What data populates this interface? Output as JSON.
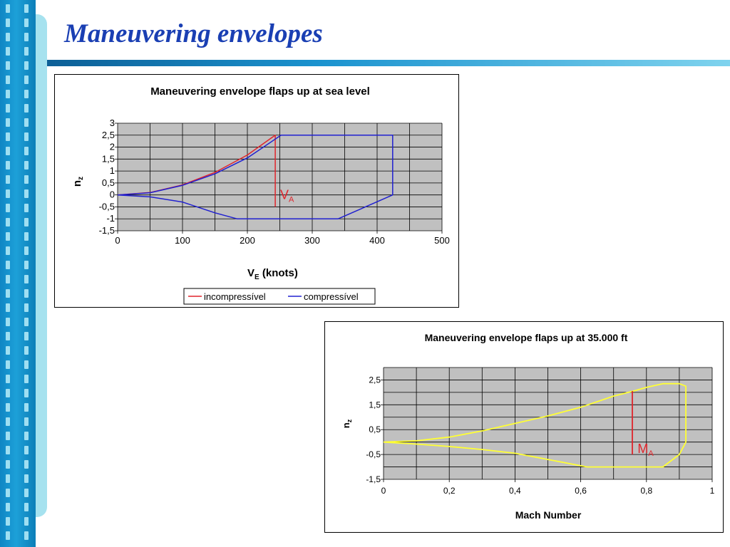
{
  "slide": {
    "title": "Maneuvering envelopes",
    "colors": {
      "title": "#1a3fb3",
      "stripe": "#1da0d8",
      "rule": "#1b93cf"
    }
  },
  "chart_data": [
    {
      "type": "line",
      "title": "Maneuvering envelope flaps up at sea level",
      "xlabel_main": "V",
      "xlabel_sub": "E",
      "xlabel_tail": " (knots)",
      "ylabel_main": "n",
      "ylabel_sub": "z",
      "xlim": [
        0,
        500
      ],
      "ylim": [
        -1.5,
        3
      ],
      "xticks": [
        0,
        100,
        200,
        300,
        400,
        500
      ],
      "xtick_labels": [
        "0",
        "100",
        "200",
        "300",
        "400",
        "500"
      ],
      "yticks": [
        3,
        2.5,
        2,
        1.5,
        1,
        0.5,
        0,
        -0.5,
        -1,
        -1.5
      ],
      "ytick_labels": [
        "3",
        "2,5",
        "2",
        "1,5",
        "1",
        "0,5",
        "0",
        "-0,5",
        "-1",
        "-1,5"
      ],
      "grid": true,
      "plot_background": "#c0c0c0",
      "legend_position": "bottom",
      "series": [
        {
          "name": "incompressível",
          "color": "#e0242b",
          "points": [
            [
              0,
              0
            ],
            [
              50,
              0.1
            ],
            [
              100,
              0.42
            ],
            [
              150,
              0.94
            ],
            [
              200,
              1.67
            ],
            [
              243,
              2.5
            ],
            [
              243,
              -0.5
            ]
          ]
        },
        {
          "name": "compressível",
          "color": "#2020d0",
          "points": [
            [
              0,
              0
            ],
            [
              50,
              0.09
            ],
            [
              100,
              0.4
            ],
            [
              150,
              0.88
            ],
            [
              200,
              1.55
            ],
            [
              252,
              2.5
            ],
            [
              424,
              2.5
            ],
            [
              424,
              0
            ],
            [
              340,
              -1
            ],
            [
              184,
              -1
            ],
            [
              150,
              -0.75
            ],
            [
              100,
              -0.3
            ],
            [
              50,
              -0.08
            ],
            [
              0,
              0
            ]
          ]
        }
      ],
      "annotations": [
        {
          "text_main": "V",
          "text_sub": "A",
          "x": 245,
          "y": -0.3,
          "color": "#e0242b"
        }
      ]
    },
    {
      "type": "line",
      "title": "Maneuvering envelope flaps up at 35.000 ft",
      "xlabel": "Mach Number",
      "ylabel_main": "n",
      "ylabel_sub": "z",
      "xlim": [
        0,
        1
      ],
      "ylim": [
        -1.5,
        3
      ],
      "xticks": [
        0,
        0.2,
        0.4,
        0.6,
        0.8,
        1
      ],
      "xtick_labels": [
        "0",
        "0,2",
        "0,4",
        "0,6",
        "0,8",
        "1"
      ],
      "yticks": [
        2.5,
        1.5,
        0.5,
        -0.5,
        -1.5
      ],
      "ytick_labels": [
        "2,5",
        "1,5",
        "0,5",
        "-0,5",
        "-1,5"
      ],
      "grid": true,
      "plot_background": "#c0c0c0",
      "series": [
        {
          "color": "#ffff33",
          "points": [
            [
              0,
              0
            ],
            [
              0.1,
              0.05
            ],
            [
              0.2,
              0.2
            ],
            [
              0.3,
              0.45
            ],
            [
              0.4,
              0.75
            ],
            [
              0.5,
              1.05
            ],
            [
              0.6,
              1.4
            ],
            [
              0.7,
              1.85
            ],
            [
              0.76,
              2.05
            ],
            [
              0.8,
              2.2
            ],
            [
              0.85,
              2.35
            ],
            [
              0.9,
              2.35
            ],
            [
              0.92,
              2.25
            ],
            [
              0.92,
              0
            ],
            [
              0.9,
              -0.5
            ],
            [
              0.85,
              -1
            ],
            [
              0.62,
              -1
            ],
            [
              0.5,
              -0.7
            ],
            [
              0.4,
              -0.45
            ],
            [
              0.3,
              -0.3
            ],
            [
              0.2,
              -0.18
            ],
            [
              0.1,
              -0.08
            ],
            [
              0,
              0
            ]
          ]
        },
        {
          "color": "#e0242b",
          "points": [
            [
              0.757,
              2.05
            ],
            [
              0.757,
              -0.5
            ]
          ]
        }
      ],
      "annotations": [
        {
          "text_main": "M",
          "text_sub": "A",
          "x": 0.76,
          "y": -0.5,
          "color": "#e0242b"
        }
      ]
    }
  ]
}
